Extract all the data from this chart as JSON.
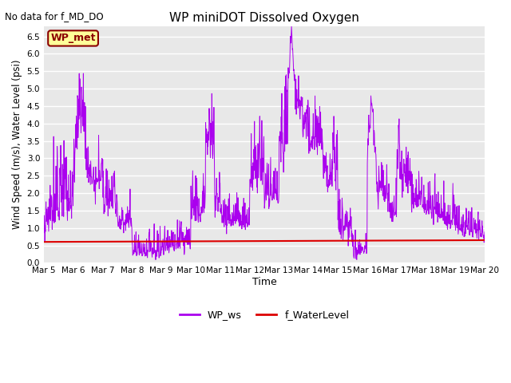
{
  "title": "WP miniDOT Dissolved Oxygen",
  "no_data_text": "No data for f_MD_DO",
  "xlabel": "Time",
  "ylabel": "Wind Speed (m/s), Water Level (psi)",
  "ylim": [
    0.0,
    6.8
  ],
  "yticks": [
    0.0,
    0.5,
    1.0,
    1.5,
    2.0,
    2.5,
    3.0,
    3.5,
    4.0,
    4.5,
    5.0,
    5.5,
    6.0,
    6.5
  ],
  "water_level_value": 0.6,
  "water_level_color": "#dd0000",
  "ws_color": "#aa00ee",
  "fig_bg_color": "#ffffff",
  "plot_bg_color": "#e8e8e8",
  "grid_color": "#ffffff",
  "legend_label_ws": "WP_ws",
  "legend_label_wl": "f_WaterLevel",
  "station_label": "WP_met",
  "station_label_bg": "#ffff99",
  "station_label_border": "#8b0000",
  "num_points": 1500,
  "seed": 7
}
